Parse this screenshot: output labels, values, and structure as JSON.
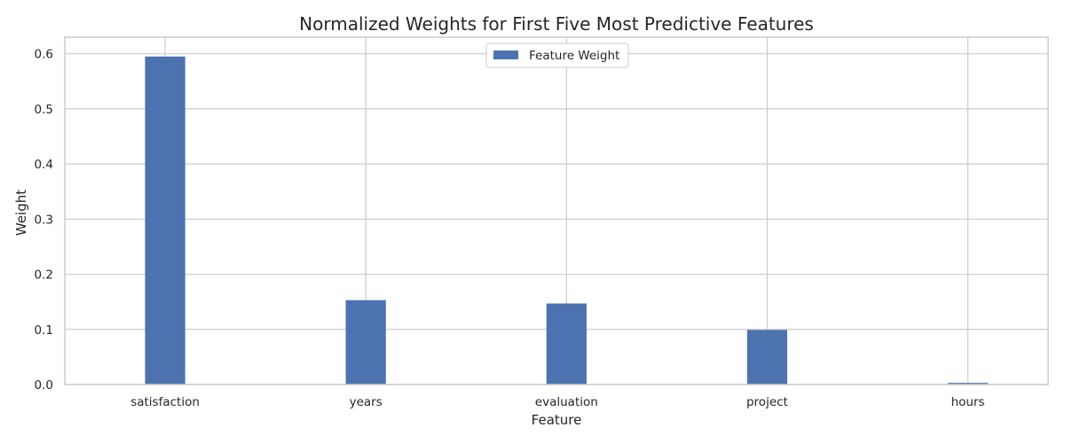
{
  "chart_data": {
    "type": "bar",
    "title": "Normalized Weights for First Five Most Predictive Features",
    "xlabel": "Feature",
    "ylabel": "Weight",
    "categories": [
      "satisfaction",
      "years",
      "evaluation",
      "project",
      "hours"
    ],
    "series": [
      {
        "name": "Feature Weight",
        "color": "#4c72b0",
        "values": [
          0.595,
          0.153,
          0.147,
          0.099,
          0.003
        ]
      }
    ],
    "ylim": [
      0,
      0.63
    ],
    "yticks": [
      0.0,
      0.1,
      0.2,
      0.3,
      0.4,
      0.5,
      0.6
    ],
    "ytick_labels": [
      "0.0",
      "0.1",
      "0.2",
      "0.3",
      "0.4",
      "0.5",
      "0.6"
    ],
    "grid": true,
    "legend_position": "upper-center"
  }
}
